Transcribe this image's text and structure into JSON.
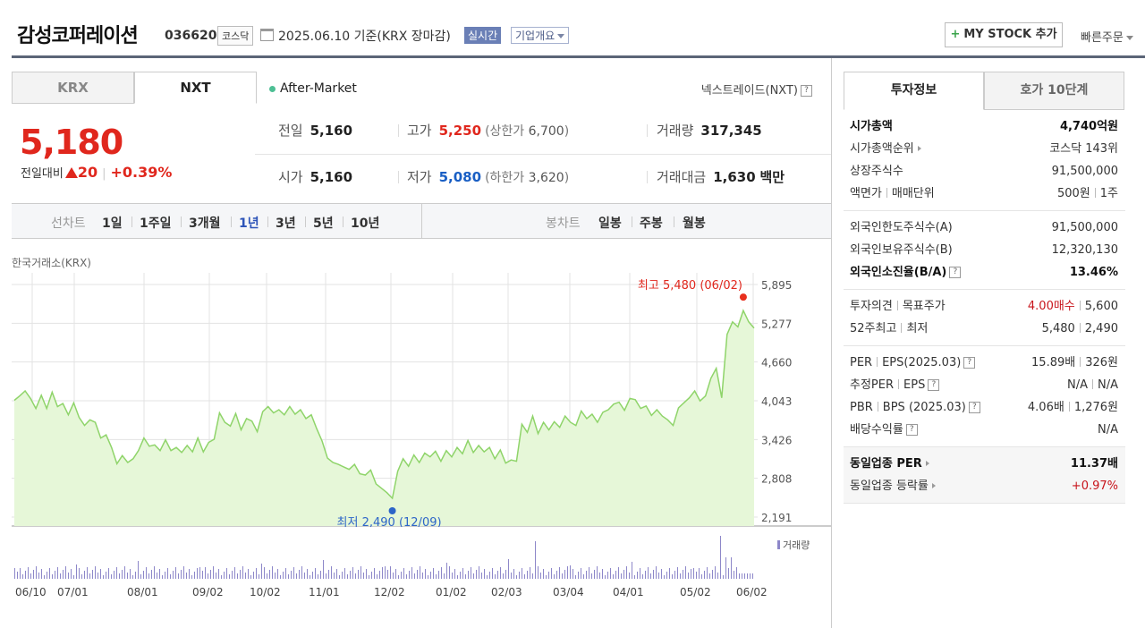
{
  "header": {
    "company_name": "감성코퍼레이션",
    "code": "036620",
    "market": "코스닥",
    "date_text": "2025.06.10  기준(KRX 장마감)",
    "realtime_label": "실시간",
    "profile_label": "기업개요",
    "mystock_label": "MY STOCK 추가",
    "quick_order_label": "빠른주문"
  },
  "tabs": [
    "KRX",
    "NXT"
  ],
  "after_market_label": "After-Market",
  "nextrade_label": "넥스트레이드(NXT)",
  "quote": {
    "price": "5,180",
    "change_label": "전일대비",
    "change_value": "20",
    "change_pct": "+0.39%",
    "prev_label": "전일",
    "prev": "5,160",
    "high_label": "고가",
    "high": "5,250",
    "upper_label": "(상한가",
    "upper": "6,700",
    "upper_close": ")",
    "volume_label": "거래량",
    "volume": "317,345",
    "open_label": "시가",
    "open": "5,160",
    "low_label": "저가",
    "low": "5,080",
    "lower_label": "(하한가",
    "lower": "3,620",
    "lower_close": ")",
    "amount_label": "거래대금",
    "amount": "1,630",
    "amount_unit": "백만"
  },
  "periods": {
    "line_label": "선차트",
    "line_items": [
      "1일",
      "1주일",
      "3개월",
      "1년",
      "3년",
      "5년",
      "10년"
    ],
    "selected": "1년",
    "candle_label": "봉차트",
    "candle_items": [
      "일봉",
      "주봉",
      "월봉"
    ]
  },
  "chart_data": {
    "type": "area",
    "source_label": "한국거래소(KRX)",
    "y_ticks": [
      "5,895",
      "5,277",
      "4,660",
      "4,043",
      "3,426",
      "2,808",
      "2,191"
    ],
    "ylim": [
      2191,
      5895
    ],
    "x_ticks": [
      "06/10",
      "07/01",
      "08/01",
      "09/02",
      "10/02",
      "11/01",
      "12/02",
      "01/02",
      "02/03",
      "03/04",
      "04/01",
      "05/02",
      "06/02"
    ],
    "high_label": "최고 5,480 (06/02)",
    "low_label": "최저 2,490 (12/09)",
    "high": 5480,
    "low": 2490,
    "series": [
      {
        "values": [
          4050,
          4120,
          4200,
          4080,
          3920,
          4130,
          3920,
          4180,
          3950,
          4000,
          3820,
          4010,
          3780,
          3650,
          3740,
          3700,
          3450,
          3500,
          3300,
          3040,
          3170,
          3060,
          3120,
          3250,
          3450,
          3320,
          3340,
          3250,
          3420,
          3250,
          3300,
          3220,
          3330,
          3230,
          3450,
          3230,
          3380,
          3430,
          3850,
          3700,
          3640,
          3840,
          3580,
          3760,
          3720,
          3550,
          3870,
          3950,
          3850,
          3900,
          3820,
          3950,
          3830,
          3900,
          3760,
          3820,
          3600,
          3400,
          3130,
          3060,
          3030,
          2990,
          2950,
          3030,
          2880,
          2860,
          2940,
          2720,
          2650,
          2580,
          2490,
          2920,
          3120,
          3000,
          3180,
          3060,
          3210,
          3150,
          3240,
          3080,
          3250,
          3150,
          3300,
          3200,
          3410,
          3220,
          3330,
          3230,
          3300,
          3120,
          3260,
          3050,
          3100,
          3080,
          3670,
          3540,
          3800,
          3520,
          3700,
          3580,
          3710,
          3620,
          3800,
          3700,
          3650,
          3880,
          3760,
          3830,
          3700,
          3860,
          3900,
          3990,
          4020,
          3890,
          4080,
          4060,
          3920,
          3960,
          3810,
          3900,
          3800,
          3740,
          3650,
          3930,
          4010,
          4090,
          4200,
          4040,
          4120,
          4400,
          4560,
          4090,
          5100,
          5300,
          5220,
          5480,
          5300,
          5200
        ]
      }
    ],
    "volume_legend": "거래량"
  },
  "invest": {
    "tabs": [
      "투자정보",
      "호가 10단계"
    ],
    "sections": [
      {
        "shade": false,
        "rows": [
          {
            "k": "시가총액",
            "v": "4,740억원",
            "bold": true
          },
          {
            "k": "시가총액순위",
            "v": "코스닥 143위",
            "arrow": true
          },
          {
            "k": "상장주식수",
            "v": "91,500,000"
          },
          {
            "k": "액면가",
            "k2": "매매단위",
            "v": "500원",
            "v2": "1주"
          }
        ]
      },
      {
        "shade": false,
        "rows": [
          {
            "k": "외국인한도주식수(A)",
            "v": "91,500,000"
          },
          {
            "k": "외국인보유주식수(B)",
            "v": "12,320,130"
          },
          {
            "k": "외국인소진율(B/A)",
            "v": "13.46%",
            "bold": true,
            "q": true
          }
        ]
      },
      {
        "shade": false,
        "rows": [
          {
            "k": "투자의견",
            "k2": "목표주가",
            "v": "4.00매수",
            "v2": "5,600",
            "red": true
          },
          {
            "k": "52주최고",
            "k2": "최저",
            "v": "5,480",
            "v2": "2,490"
          }
        ]
      },
      {
        "shade": false,
        "rows": [
          {
            "k": "PER",
            "k2": "EPS(2025.03)",
            "v": "15.89배",
            "v2": "326원",
            "q": true
          },
          {
            "k": "추정PER",
            "k2": "EPS",
            "v": "N/A",
            "v2": "N/A",
            "q": true
          },
          {
            "k": "PBR",
            "k2": "BPS (2025.03)",
            "v": "4.06배",
            "v2": "1,276원",
            "q": true
          },
          {
            "k": "배당수익률",
            "v": "N/A",
            "q": true
          }
        ]
      },
      {
        "shade": true,
        "rows": [
          {
            "k": "동일업종 PER",
            "v": "11.37배",
            "bold": true,
            "arrow": true
          },
          {
            "k": "동일업종 등락률",
            "v": "+0.97%",
            "red": true,
            "arrow": true
          }
        ]
      }
    ]
  }
}
